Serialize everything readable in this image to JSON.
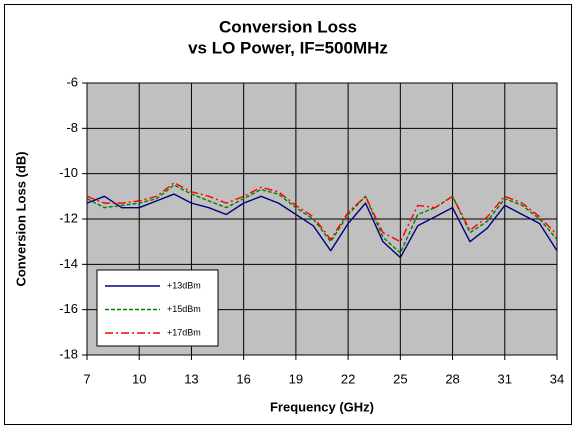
{
  "chart_data": {
    "type": "line",
    "title": "Conversion Loss",
    "subtitle": "vs LO Power, IF=500MHz",
    "x_label": "Frequency (GHz)",
    "y_label": "Conversion Loss (dB)",
    "x": [
      7,
      8,
      9,
      10,
      11,
      12,
      13,
      14,
      15,
      16,
      17,
      18,
      19,
      20,
      21,
      22,
      23,
      24,
      25,
      26,
      27,
      28,
      29,
      30,
      31,
      32,
      33,
      34
    ],
    "series": [
      {
        "name": "+13dBm",
        "color": "#000080",
        "dash": "solid",
        "values": [
          -11.3,
          -11.0,
          -11.5,
          -11.5,
          -11.2,
          -10.9,
          -11.3,
          -11.5,
          -11.8,
          -11.3,
          -11.0,
          -11.3,
          -11.8,
          -12.3,
          -13.4,
          -12.2,
          -11.3,
          -13.0,
          -13.7,
          -12.3,
          -11.9,
          -11.5,
          -13.0,
          -12.4,
          -11.4,
          -11.8,
          -12.2,
          -13.4
        ]
      },
      {
        "name": "+15dBm",
        "color": "#008000",
        "dash": "dashed",
        "values": [
          -11.1,
          -11.5,
          -11.4,
          -11.3,
          -11.1,
          -10.5,
          -10.9,
          -11.2,
          -11.5,
          -11.1,
          -10.7,
          -10.9,
          -11.5,
          -12.0,
          -13.0,
          -11.8,
          -11.0,
          -12.8,
          -13.5,
          -11.8,
          -11.5,
          -11.0,
          -12.6,
          -12.1,
          -11.1,
          -11.4,
          -12.0,
          -12.9
        ]
      },
      {
        "name": "+17dBm",
        "color": "#ff0000",
        "dash": "dashdot",
        "values": [
          -11.0,
          -11.3,
          -11.3,
          -11.2,
          -11.0,
          -10.4,
          -10.8,
          -11.0,
          -11.3,
          -11.0,
          -10.6,
          -10.8,
          -11.4,
          -11.9,
          -12.9,
          -11.7,
          -11.0,
          -12.6,
          -13.0,
          -11.4,
          -11.5,
          -11.0,
          -12.5,
          -11.9,
          -11.0,
          -11.3,
          -11.9,
          -12.7
        ]
      }
    ],
    "xlim": [
      7,
      34
    ],
    "xticks": [
      7,
      10,
      13,
      16,
      19,
      22,
      25,
      28,
      31,
      34
    ],
    "ylim": [
      -18,
      -6
    ],
    "yticks": [
      -18,
      -16,
      -14,
      -12,
      -10,
      -8,
      -6
    ],
    "grid": true,
    "legend": "lower left",
    "plot_background": "#c0c0c0"
  }
}
